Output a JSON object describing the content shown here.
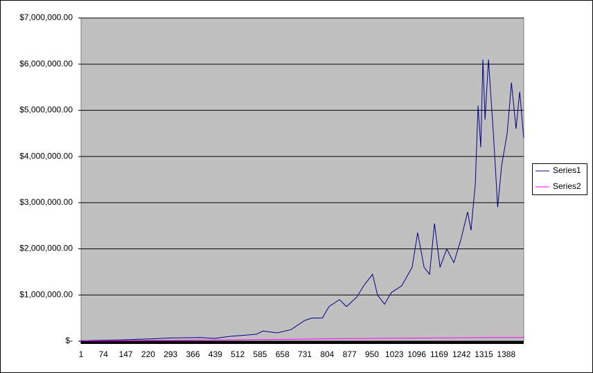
{
  "chart_data": {
    "type": "line",
    "x": [
      1,
      143,
      222,
      301,
      392,
      437,
      482,
      573,
      595,
      641,
      686,
      731,
      754,
      788,
      810,
      844,
      867,
      900,
      923,
      952,
      968,
      991,
      1013,
      1047,
      1081,
      1099,
      1120,
      1138,
      1154,
      1172,
      1194,
      1217,
      1240,
      1262,
      1273,
      1287,
      1296,
      1305,
      1312,
      1319,
      1330,
      1346,
      1360,
      1373,
      1391,
      1405,
      1420,
      1432,
      1445
    ],
    "series": [
      {
        "name": "Series1",
        "color": "#000080",
        "values": [
          10000,
          30000,
          50000,
          70000,
          80000,
          60000,
          100000,
          150000,
          220000,
          180000,
          250000,
          450000,
          500000,
          500000,
          750000,
          900000,
          750000,
          950000,
          1200000,
          1450000,
          1000000,
          800000,
          1050000,
          1200000,
          1600000,
          2350000,
          1600000,
          1450000,
          2550000,
          1600000,
          2000000,
          1700000,
          2200000,
          2800000,
          2400000,
          3400000,
          5100000,
          4200000,
          6100000,
          4800000,
          6100000,
          4500000,
          2900000,
          3800000,
          4500000,
          5600000,
          4600000,
          5400000,
          4400000
        ]
      },
      {
        "name": "Series2",
        "color": "#ff00ff",
        "values": [
          5000,
          12000,
          16000,
          20000,
          24000,
          26000,
          28000,
          33000,
          35000,
          38000,
          42000,
          45000,
          47000,
          50000,
          52000,
          55000,
          56000,
          58000,
          59000,
          60000,
          61000,
          62000,
          63000,
          64000,
          66000,
          67000,
          68000,
          69000,
          70000,
          71000,
          72000,
          73000,
          74000,
          75000,
          75000,
          76000,
          76000,
          77000,
          77000,
          77000,
          78000,
          78000,
          79000,
          79000,
          79000,
          80000,
          80000,
          80000,
          80000
        ]
      }
    ],
    "xlim": [
      1,
      1445
    ],
    "xticks": [
      1,
      74,
      147,
      220,
      293,
      366,
      439,
      512,
      585,
      658,
      731,
      804,
      877,
      950,
      1023,
      1096,
      1169,
      1242,
      1315,
      1388
    ],
    "ylim": [
      0,
      7000000
    ],
    "yticks": [
      {
        "value": 0,
        "label": "$-"
      },
      {
        "value": 1000000,
        "label": "$1,000,000.00"
      },
      {
        "value": 2000000,
        "label": "$2,000,000.00"
      },
      {
        "value": 3000000,
        "label": "$3,000,000.00"
      },
      {
        "value": 4000000,
        "label": "$4,000,000.00"
      },
      {
        "value": 5000000,
        "label": "$5,000,000.00"
      },
      {
        "value": 6000000,
        "label": "$6,000,000.00"
      },
      {
        "value": 7000000,
        "label": "$7,000,000.00"
      }
    ],
    "grid": true,
    "legend": "right"
  }
}
